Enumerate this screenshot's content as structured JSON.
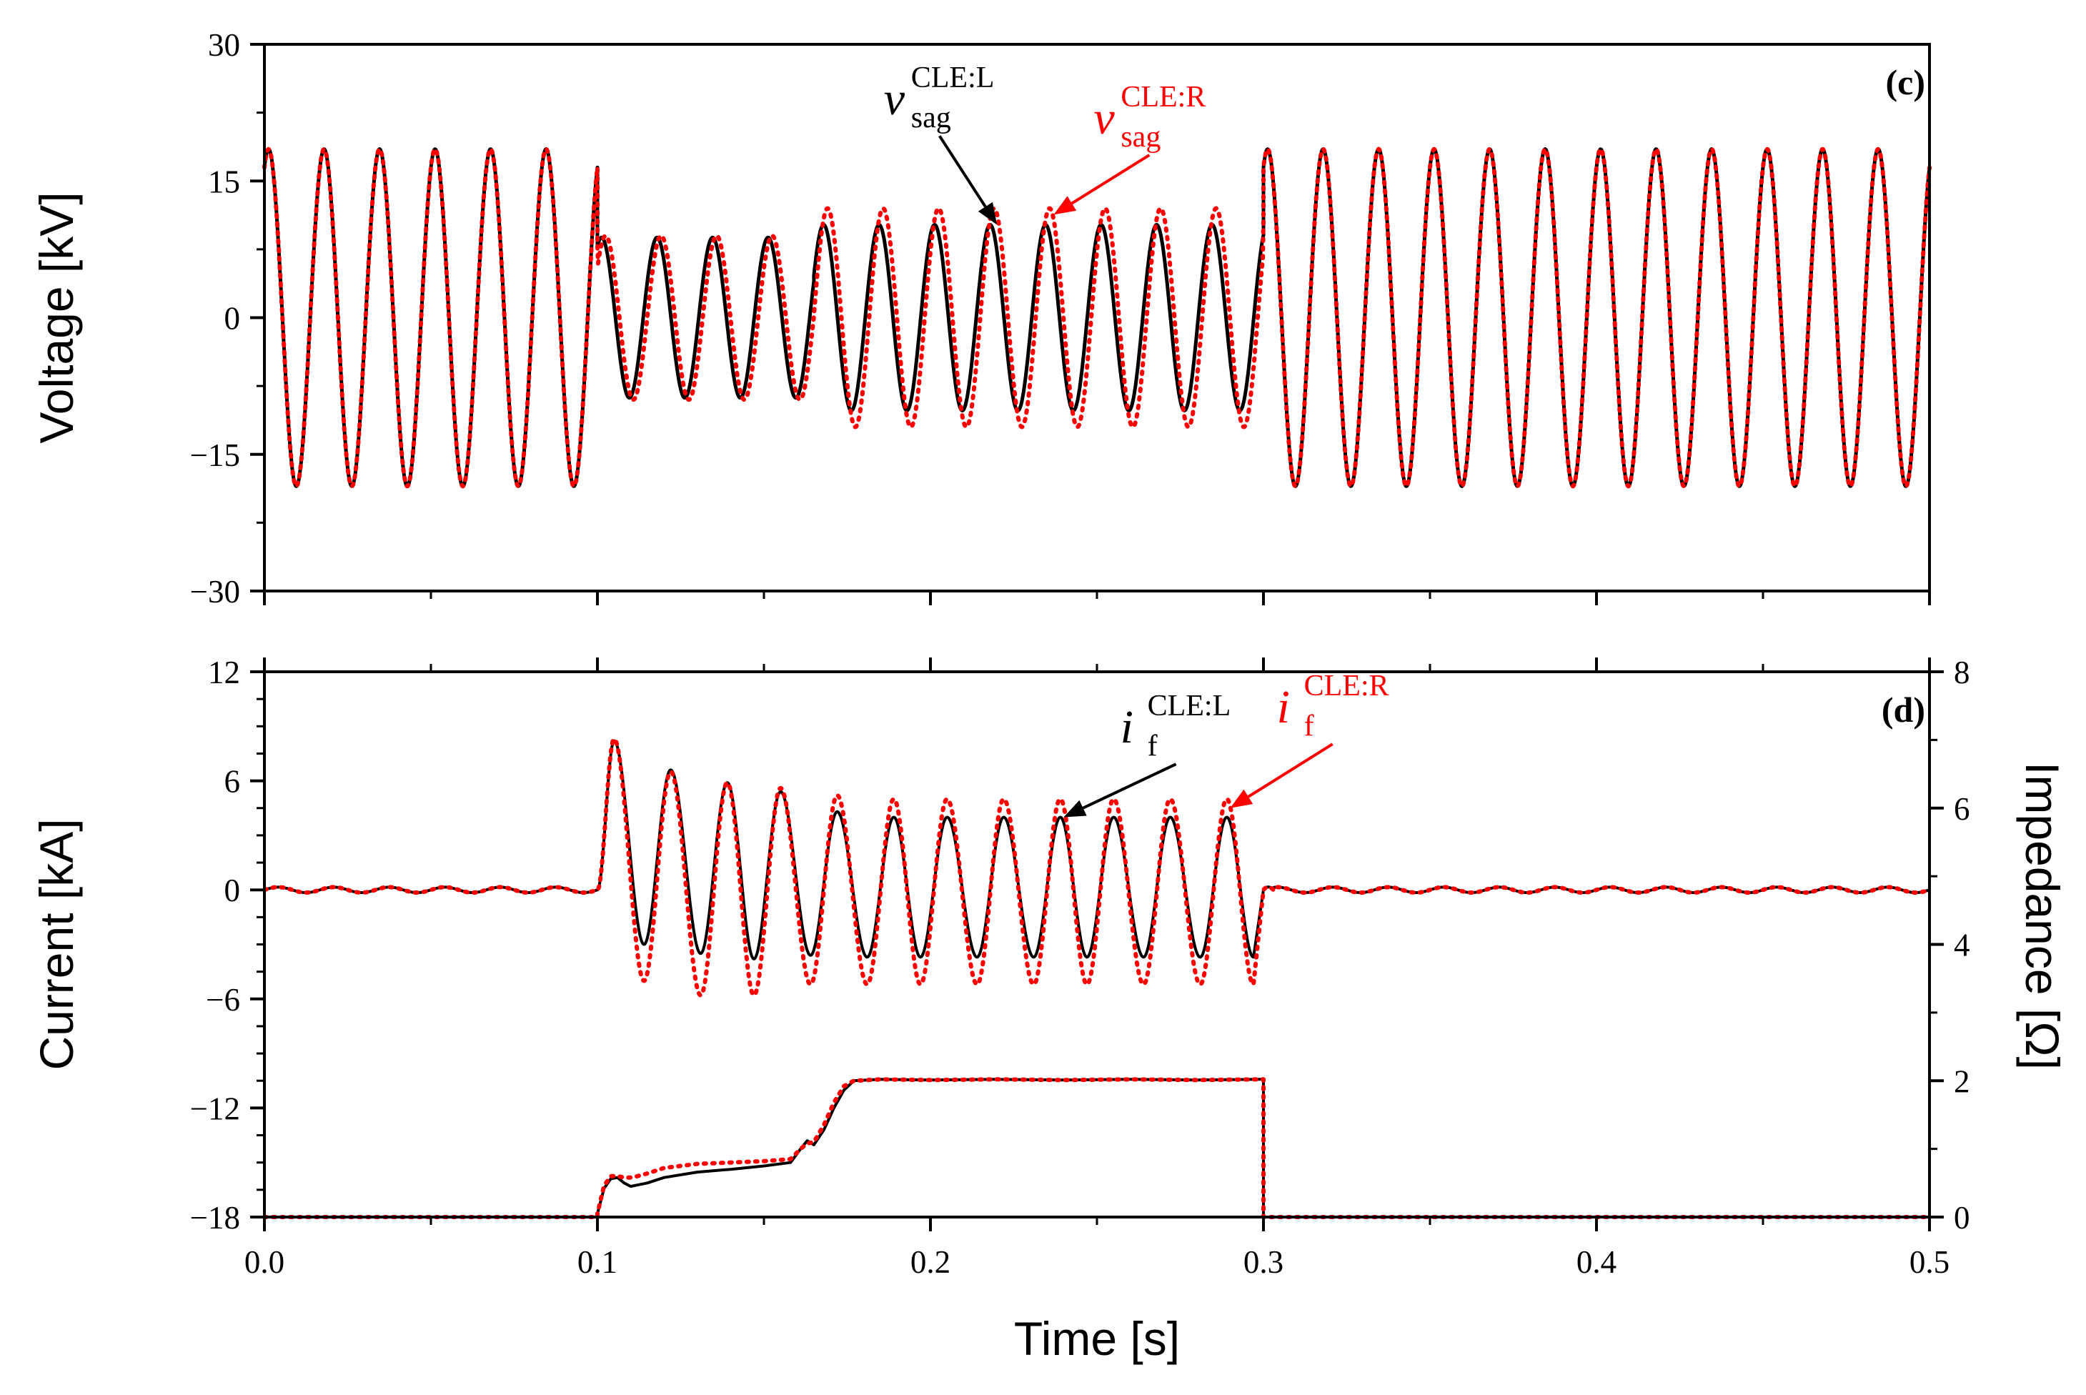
{
  "chart_data": [
    {
      "type": "line",
      "panel": "(c)",
      "xlabel": "",
      "ylabel": "Voltage [kV]",
      "xlim": [
        0,
        0.5
      ],
      "ylim": [
        -30,
        30
      ],
      "yticks": [
        "30",
        "15",
        "0",
        "−15",
        "−30"
      ],
      "ytick_values": [
        30,
        15,
        0,
        -15,
        -30
      ],
      "xtick_values": [
        0,
        0.1,
        0.2,
        0.3,
        0.4,
        0.5
      ],
      "frequency_hz": 60,
      "fault_interval_s": [
        0.1,
        0.3
      ],
      "series": [
        {
          "name": "v_sag CLE:L",
          "color": "#000000",
          "style": "solid",
          "segments": [
            {
              "x": [
                0,
                0.1
              ],
              "amplitude": 18.5
            },
            {
              "x": [
                0.1,
                0.165
              ],
              "amplitude": 8.8
            },
            {
              "x": [
                0.165,
                0.3
              ],
              "amplitude": 10.2
            },
            {
              "x": [
                0.3,
                0.5
              ],
              "amplitude": 18.5
            }
          ]
        },
        {
          "name": "v_sag CLE:R",
          "color": "#ff0000",
          "style": "dotted",
          "segments": [
            {
              "x": [
                0,
                0.1
              ],
              "amplitude": 18.5
            },
            {
              "x": [
                0.1,
                0.165
              ],
              "amplitude": 9.0
            },
            {
              "x": [
                0.165,
                0.3
              ],
              "amplitude": 12.0
            },
            {
              "x": [
                0.3,
                0.5
              ],
              "amplitude": 18.5
            }
          ]
        }
      ],
      "annotations": [
        {
          "base": "v",
          "sub": "sag",
          "sup": "CLE:L",
          "color": "#000000",
          "text_at": [
            0.186,
            22.3
          ],
          "arrow_to": [
            0.22,
            10.2
          ]
        },
        {
          "base": "v",
          "sub": "sag",
          "sup": "CLE:R",
          "color": "#ff0000",
          "text_at": [
            0.249,
            20.2
          ],
          "arrow_to": [
            0.237,
            11.3
          ]
        }
      ]
    },
    {
      "type": "line",
      "panel": "(d)",
      "xlabel": "Time [s]",
      "ylabel": "Current [kA]",
      "y2label": "Impedance [Ω]",
      "xlim": [
        0,
        0.5
      ],
      "ylim": [
        -18,
        12
      ],
      "y2lim": [
        0,
        8
      ],
      "xticks": [
        "0.0",
        "0.1",
        "0.2",
        "0.3",
        "0.4",
        "0.5"
      ],
      "xtick_values": [
        0,
        0.1,
        0.2,
        0.3,
        0.4,
        0.5
      ],
      "yticks": [
        "12",
        "6",
        "0",
        "−6",
        "−12",
        "−18"
      ],
      "ytick_values": [
        12,
        6,
        0,
        -6,
        -12,
        -18
      ],
      "y2ticks": [
        "8",
        "6",
        "4",
        "2",
        "0"
      ],
      "y2tick_values": [
        8,
        6,
        4,
        2,
        0
      ],
      "series": [
        {
          "name": "i_f CLE:L",
          "color": "#000000",
          "style": "solid",
          "peaks": [
            {
              "x": 0.105,
              "y": 8.2
            },
            {
              "x": 0.114,
              "y": -3.0
            },
            {
              "x": 0.122,
              "y": 6.6
            },
            {
              "x": 0.131,
              "y": -3.5
            },
            {
              "x": 0.139,
              "y": 5.9
            },
            {
              "x": 0.147,
              "y": -3.8
            },
            {
              "x": 0.155,
              "y": 5.4
            },
            {
              "x": 0.164,
              "y": -3.6
            },
            {
              "x": 0.172,
              "y": 4.3
            },
            {
              "x": 0.181,
              "y": -3.7
            },
            {
              "x": 0.189,
              "y": 4.0
            },
            {
              "x": 0.197,
              "y": -3.7
            },
            {
              "x": 0.205,
              "y": 4.0
            },
            {
              "x": 0.214,
              "y": -3.7
            },
            {
              "x": 0.222,
              "y": 4.0
            },
            {
              "x": 0.231,
              "y": -3.7
            },
            {
              "x": 0.239,
              "y": 4.0
            },
            {
              "x": 0.247,
              "y": -3.7
            },
            {
              "x": 0.255,
              "y": 4.0
            },
            {
              "x": 0.264,
              "y": -3.7
            },
            {
              "x": 0.272,
              "y": 4.0
            },
            {
              "x": 0.281,
              "y": -3.7
            },
            {
              "x": 0.289,
              "y": 4.0
            },
            {
              "x": 0.297,
              "y": -3.7
            }
          ],
          "prefault_ripple": 0.15
        },
        {
          "name": "i_f CLE:R",
          "color": "#ff0000",
          "style": "dotted",
          "peaks": [
            {
              "x": 0.105,
              "y": 8.3
            },
            {
              "x": 0.114,
              "y": -5.0
            },
            {
              "x": 0.122,
              "y": 6.5
            },
            {
              "x": 0.131,
              "y": -5.8
            },
            {
              "x": 0.139,
              "y": 5.9
            },
            {
              "x": 0.147,
              "y": -5.8
            },
            {
              "x": 0.155,
              "y": 5.6
            },
            {
              "x": 0.164,
              "y": -5.2
            },
            {
              "x": 0.172,
              "y": 5.2
            },
            {
              "x": 0.181,
              "y": -5.2
            },
            {
              "x": 0.189,
              "y": 5.0
            },
            {
              "x": 0.197,
              "y": -5.2
            },
            {
              "x": 0.205,
              "y": 5.0
            },
            {
              "x": 0.214,
              "y": -5.2
            },
            {
              "x": 0.222,
              "y": 5.0
            },
            {
              "x": 0.231,
              "y": -5.2
            },
            {
              "x": 0.239,
              "y": 5.0
            },
            {
              "x": 0.247,
              "y": -5.2
            },
            {
              "x": 0.255,
              "y": 5.0
            },
            {
              "x": 0.264,
              "y": -5.2
            },
            {
              "x": 0.272,
              "y": 5.0
            },
            {
              "x": 0.281,
              "y": -5.2
            },
            {
              "x": 0.289,
              "y": 5.0
            },
            {
              "x": 0.297,
              "y": -5.2
            }
          ],
          "prefault_ripple": 0.15
        },
        {
          "name": "Impedance CLE:L",
          "axis": "y2",
          "color": "#000000",
          "style": "solid",
          "x": [
            0,
            0.1,
            0.1,
            0.102,
            0.104,
            0.106,
            0.108,
            0.11,
            0.112,
            0.115,
            0.12,
            0.13,
            0.14,
            0.15,
            0.158,
            0.161,
            0.163,
            0.165,
            0.168,
            0.171,
            0.174,
            0.177,
            0.185,
            0.2,
            0.22,
            0.24,
            0.26,
            0.28,
            0.299,
            0.3,
            0.3,
            0.5
          ],
          "y": [
            0,
            0,
            0.05,
            0.42,
            0.56,
            0.58,
            0.5,
            0.45,
            0.47,
            0.5,
            0.58,
            0.66,
            0.7,
            0.75,
            0.8,
            1.0,
            1.12,
            1.06,
            1.28,
            1.6,
            1.86,
            2.0,
            2.02,
            2.01,
            2.02,
            2.01,
            2.02,
            2.01,
            2.02,
            2.02,
            0,
            0
          ]
        },
        {
          "name": "Impedance CLE:R",
          "axis": "y2",
          "color": "#ff0000",
          "style": "dotted",
          "x": [
            0,
            0.1,
            0.1,
            0.102,
            0.104,
            0.106,
            0.108,
            0.11,
            0.112,
            0.115,
            0.12,
            0.13,
            0.14,
            0.15,
            0.158,
            0.161,
            0.163,
            0.165,
            0.168,
            0.171,
            0.174,
            0.177,
            0.185,
            0.2,
            0.22,
            0.24,
            0.26,
            0.28,
            0.299,
            0.3,
            0.3,
            0.5
          ],
          "y": [
            0,
            0,
            0.05,
            0.46,
            0.6,
            0.6,
            0.58,
            0.58,
            0.6,
            0.64,
            0.72,
            0.78,
            0.8,
            0.82,
            0.85,
            1.0,
            1.08,
            1.1,
            1.35,
            1.68,
            1.92,
            2.0,
            2.02,
            2.01,
            2.02,
            2.01,
            2.02,
            2.01,
            2.02,
            2.02,
            0,
            0
          ]
        }
      ],
      "annotations": [
        {
          "base": "i",
          "sub": "f",
          "sup": "CLE:L",
          "color": "#000000",
          "text_at": [
            0.257,
            8.1
          ],
          "arrow_to": [
            0.24,
            4.0
          ]
        },
        {
          "base": "i",
          "sub": "f",
          "sup": "CLE:R",
          "color": "#ff0000",
          "text_at": [
            0.304,
            9.2
          ],
          "arrow_to": [
            0.29,
            4.5
          ]
        }
      ]
    }
  ]
}
